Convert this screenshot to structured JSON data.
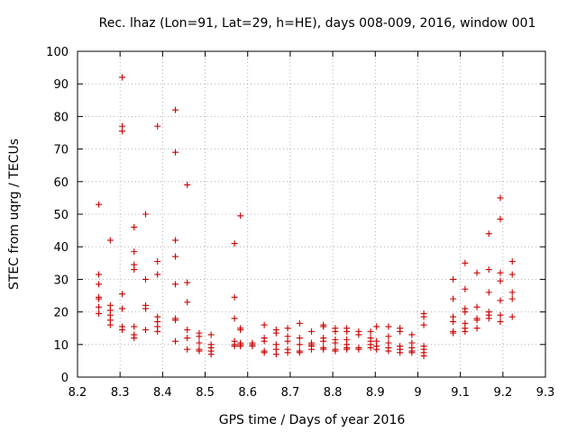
{
  "chart_data": {
    "type": "scatter",
    "title": "Rec. lhaz (Lon=91, Lat=29, h=HE), days 008-009, 2016, window 001",
    "xlabel": "GPS time / Days of year 2016",
    "ylabel": "STEC from uqrg / TECUs",
    "xlim": [
      8.2,
      9.3
    ],
    "ylim": [
      0,
      100
    ],
    "xticks": [
      8.2,
      8.3,
      8.4,
      8.5,
      8.6,
      8.7,
      8.8,
      8.9,
      9.0,
      9.1,
      9.2,
      9.3
    ],
    "xtick_labels": [
      "8.2",
      "8.3",
      "8.4",
      "8.5",
      "8.6",
      "8.7",
      "8.8",
      "8.9",
      "9",
      "9.1",
      "9.2",
      "9.3"
    ],
    "yticks": [
      0,
      10,
      20,
      30,
      40,
      50,
      60,
      70,
      80,
      90,
      100
    ],
    "ytick_labels": [
      "0",
      "10",
      "20",
      "30",
      "40",
      "50",
      "60",
      "70",
      "80",
      "90",
      "100"
    ],
    "marker": "+",
    "color": "#cc0000",
    "series": [
      {
        "name": "STEC",
        "points": [
          [
            8.25,
            53
          ],
          [
            8.25,
            31.5
          ],
          [
            8.25,
            28.5
          ],
          [
            8.25,
            24.5
          ],
          [
            8.25,
            24
          ],
          [
            8.25,
            21.5
          ],
          [
            8.25,
            19.5
          ],
          [
            8.277,
            42
          ],
          [
            8.277,
            22
          ],
          [
            8.277,
            20.5
          ],
          [
            8.277,
            19
          ],
          [
            8.277,
            17.5
          ],
          [
            8.277,
            16
          ],
          [
            8.305,
            92
          ],
          [
            8.305,
            77
          ],
          [
            8.305,
            75.5
          ],
          [
            8.305,
            25.5
          ],
          [
            8.305,
            21
          ],
          [
            8.305,
            15.5
          ],
          [
            8.305,
            14.5
          ],
          [
            8.333,
            46
          ],
          [
            8.333,
            38.5
          ],
          [
            8.333,
            34.5
          ],
          [
            8.333,
            33
          ],
          [
            8.333,
            15.5
          ],
          [
            8.333,
            13
          ],
          [
            8.333,
            12
          ],
          [
            8.36,
            50
          ],
          [
            8.36,
            30
          ],
          [
            8.36,
            22
          ],
          [
            8.36,
            21
          ],
          [
            8.36,
            14.5
          ],
          [
            8.388,
            77
          ],
          [
            8.388,
            35.5
          ],
          [
            8.388,
            31.5
          ],
          [
            8.388,
            18.5
          ],
          [
            8.388,
            17
          ],
          [
            8.388,
            15.5
          ],
          [
            8.388,
            14
          ],
          [
            8.43,
            82
          ],
          [
            8.43,
            69
          ],
          [
            8.43,
            42
          ],
          [
            8.43,
            37
          ],
          [
            8.43,
            28.5
          ],
          [
            8.43,
            18
          ],
          [
            8.43,
            17.5
          ],
          [
            8.43,
            11
          ],
          [
            8.458,
            59
          ],
          [
            8.458,
            29
          ],
          [
            8.458,
            23
          ],
          [
            8.458,
            14.5
          ],
          [
            8.458,
            12
          ],
          [
            8.458,
            8.5
          ],
          [
            8.486,
            13.5
          ],
          [
            8.486,
            12.5
          ],
          [
            8.486,
            10.5
          ],
          [
            8.486,
            8.5
          ],
          [
            8.486,
            8
          ],
          [
            8.514,
            13
          ],
          [
            8.514,
            10
          ],
          [
            8.514,
            9
          ],
          [
            8.514,
            8
          ],
          [
            8.514,
            7
          ],
          [
            8.569,
            41
          ],
          [
            8.569,
            24.5
          ],
          [
            8.569,
            18
          ],
          [
            8.569,
            11
          ],
          [
            8.569,
            10
          ],
          [
            8.569,
            9.5
          ],
          [
            8.583,
            49.5
          ],
          [
            8.583,
            15
          ],
          [
            8.583,
            14.5
          ],
          [
            8.583,
            10.5
          ],
          [
            8.583,
            10
          ],
          [
            8.583,
            9.5
          ],
          [
            8.611,
            10.5
          ],
          [
            8.611,
            10
          ],
          [
            8.611,
            9.5
          ],
          [
            8.639,
            16
          ],
          [
            8.639,
            12
          ],
          [
            8.639,
            11
          ],
          [
            8.639,
            8
          ],
          [
            8.639,
            7.5
          ],
          [
            8.667,
            14.5
          ],
          [
            8.667,
            13.5
          ],
          [
            8.667,
            10
          ],
          [
            8.667,
            8.5
          ],
          [
            8.667,
            7
          ],
          [
            8.694,
            15
          ],
          [
            8.694,
            12.5
          ],
          [
            8.694,
            11
          ],
          [
            8.694,
            8.5
          ],
          [
            8.694,
            7.5
          ],
          [
            8.722,
            16.5
          ],
          [
            8.722,
            12
          ],
          [
            8.722,
            10
          ],
          [
            8.722,
            8
          ],
          [
            8.722,
            7.5
          ],
          [
            8.75,
            14
          ],
          [
            8.75,
            10.5
          ],
          [
            8.75,
            10
          ],
          [
            8.75,
            9.5
          ],
          [
            8.75,
            8.5
          ],
          [
            8.778,
            16
          ],
          [
            8.778,
            15.5
          ],
          [
            8.778,
            12
          ],
          [
            8.778,
            11
          ],
          [
            8.778,
            9
          ],
          [
            8.778,
            8.5
          ],
          [
            8.806,
            15
          ],
          [
            8.806,
            14
          ],
          [
            8.806,
            11.5
          ],
          [
            8.806,
            10.5
          ],
          [
            8.806,
            8.5
          ],
          [
            8.806,
            8
          ],
          [
            8.833,
            15
          ],
          [
            8.833,
            14
          ],
          [
            8.833,
            11.5
          ],
          [
            8.833,
            10
          ],
          [
            8.833,
            9
          ],
          [
            8.833,
            8.5
          ],
          [
            8.861,
            14
          ],
          [
            8.861,
            13
          ],
          [
            8.861,
            9
          ],
          [
            8.861,
            8.5
          ],
          [
            8.889,
            14
          ],
          [
            8.889,
            12
          ],
          [
            8.889,
            11
          ],
          [
            8.889,
            10
          ],
          [
            8.889,
            9
          ],
          [
            8.903,
            15.5
          ],
          [
            8.903,
            11
          ],
          [
            8.903,
            9.5
          ],
          [
            8.903,
            8.5
          ],
          [
            8.931,
            15.5
          ],
          [
            8.931,
            12.5
          ],
          [
            8.931,
            10.5
          ],
          [
            8.931,
            9
          ],
          [
            8.931,
            8
          ],
          [
            8.958,
            15
          ],
          [
            8.958,
            14
          ],
          [
            8.958,
            9.5
          ],
          [
            8.958,
            8.5
          ],
          [
            8.958,
            7.5
          ],
          [
            8.986,
            13
          ],
          [
            8.986,
            10.5
          ],
          [
            8.986,
            9
          ],
          [
            8.986,
            8
          ],
          [
            8.986,
            7.5
          ],
          [
            9.014,
            19.5
          ],
          [
            9.014,
            18.5
          ],
          [
            9.014,
            16
          ],
          [
            9.014,
            9.5
          ],
          [
            9.014,
            8.5
          ],
          [
            9.014,
            7.5
          ],
          [
            9.014,
            6.5
          ],
          [
            9.083,
            30
          ],
          [
            9.083,
            24
          ],
          [
            9.083,
            18.5
          ],
          [
            9.083,
            17
          ],
          [
            9.083,
            14
          ],
          [
            9.083,
            13.5
          ],
          [
            9.111,
            35
          ],
          [
            9.111,
            27
          ],
          [
            9.111,
            21
          ],
          [
            9.111,
            20
          ],
          [
            9.111,
            16.5
          ],
          [
            9.111,
            15
          ],
          [
            9.111,
            14
          ],
          [
            9.139,
            32
          ],
          [
            9.139,
            21.5
          ],
          [
            9.139,
            18
          ],
          [
            9.139,
            17.5
          ],
          [
            9.139,
            15
          ],
          [
            9.167,
            44
          ],
          [
            9.167,
            33
          ],
          [
            9.167,
            26
          ],
          [
            9.167,
            20
          ],
          [
            9.167,
            19
          ],
          [
            9.167,
            18
          ],
          [
            9.194,
            55
          ],
          [
            9.194,
            48.5
          ],
          [
            9.194,
            32
          ],
          [
            9.194,
            29.5
          ],
          [
            9.194,
            23.5
          ],
          [
            9.194,
            19
          ],
          [
            9.194,
            17
          ],
          [
            9.222,
            35.5
          ],
          [
            9.222,
            31.5
          ],
          [
            9.222,
            26
          ],
          [
            9.222,
            24
          ],
          [
            9.222,
            18.5
          ]
        ]
      }
    ]
  }
}
